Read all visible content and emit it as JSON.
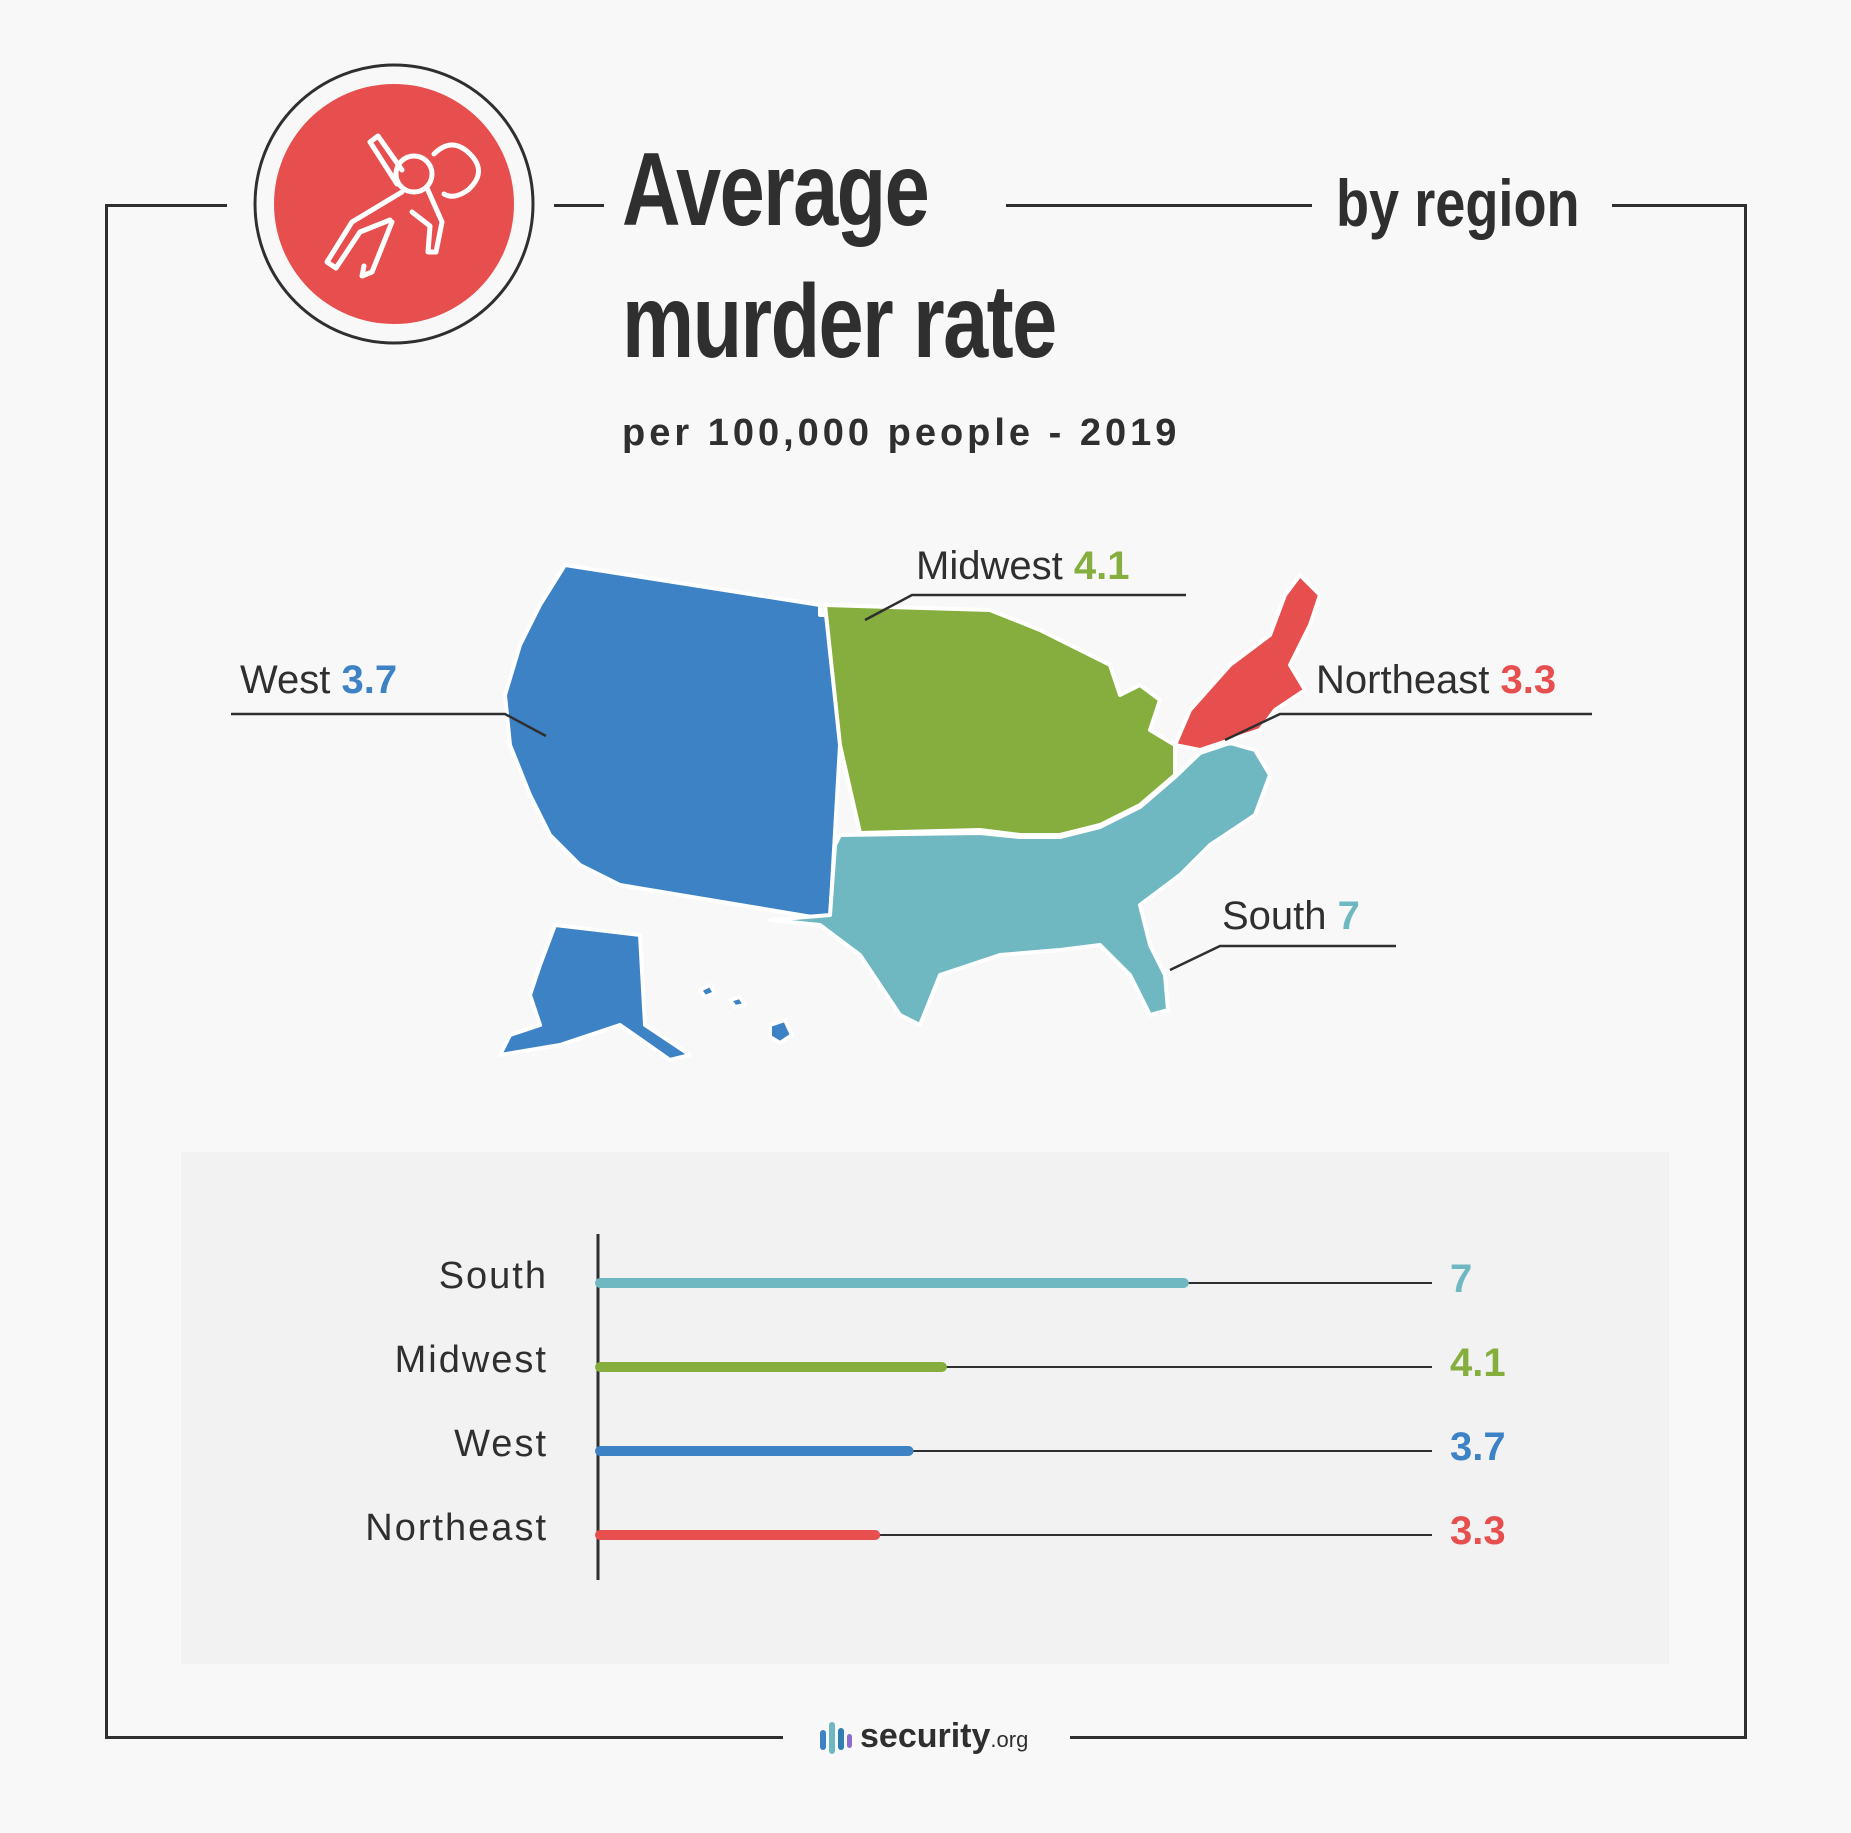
{
  "header": {
    "title_line1": "Average",
    "title_line2": "murder rate",
    "by_region": "by region",
    "subtitle": "per 100,000 people - 2019"
  },
  "colors": {
    "south": "#70b8c1",
    "midwest": "#86ae3e",
    "west": "#3e82c6",
    "northeast": "#e74f4f",
    "icon_circle": "#e74f4f",
    "text": "#2f2f2f"
  },
  "icons": [
    "chalk-outline-body-icon",
    "security-org-logo-icon"
  ],
  "map": {
    "labels": [
      {
        "region": "Midwest",
        "value": "4.1",
        "color": "#86ae3e"
      },
      {
        "region": "West",
        "value": "3.7",
        "color": "#3e82c6"
      },
      {
        "region": "Northeast",
        "value": "3.3",
        "color": "#e74f4f"
      },
      {
        "region": "South",
        "value": "7",
        "color": "#70b8c1"
      }
    ]
  },
  "chart_data": {
    "type": "bar",
    "orientation": "horizontal",
    "title": "Average murder rate by region",
    "subtitle": "per 100,000 people - 2019",
    "categories": [
      "South",
      "Midwest",
      "West",
      "Northeast"
    ],
    "values": [
      7,
      4.1,
      3.7,
      3.3
    ],
    "value_labels": [
      "7",
      "4.1",
      "3.7",
      "3.3"
    ],
    "colors": [
      "#70b8c1",
      "#86ae3e",
      "#3e82c6",
      "#e74f4f"
    ],
    "xlim": [
      0,
      10
    ],
    "grid": false,
    "legend": "none"
  },
  "footer": {
    "logo_main": "security",
    "logo_suffix": ".org"
  }
}
